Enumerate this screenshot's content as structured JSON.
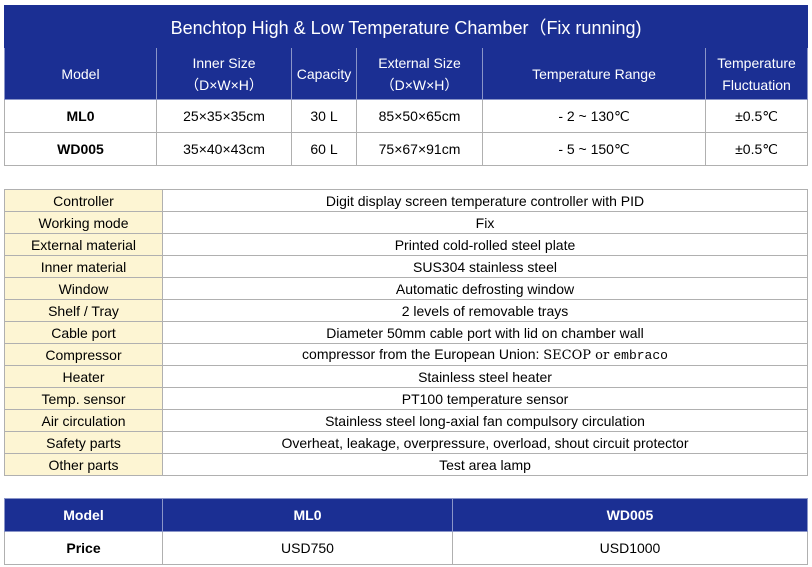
{
  "spec_table": {
    "title": "Benchtop High & Low Temperature Chamber（Fix running)",
    "headers": {
      "model": "Model",
      "inner_size": "Inner Size",
      "inner_size_sub": "（D×W×H）",
      "capacity": "Capacity",
      "external_size": "External Size",
      "external_size_sub": "（D×W×H）",
      "temp_range": "Temperature Range",
      "temp_fluct_1": "Temperature",
      "temp_fluct_2": "Fluctuation"
    },
    "rows": [
      {
        "model": "ML0",
        "inner_size": "25×35×35cm",
        "capacity": "30 L",
        "external_size": "85×50×65cm",
        "temp_range": "- 2 ~ 130℃",
        "fluctuation": "±0.5℃"
      },
      {
        "model": "WD005",
        "inner_size": "35×40×43cm",
        "capacity": "60 L",
        "external_size": "75×67×91cm",
        "temp_range": "- 5 ~ 150℃",
        "fluctuation": "±0.5℃"
      }
    ]
  },
  "features_table": {
    "rows": [
      {
        "label": "Controller",
        "value": "Digit display screen temperature controller with PID"
      },
      {
        "label": "Working mode",
        "value": "Fix"
      },
      {
        "label": "External material",
        "value": "Printed cold-rolled steel plate"
      },
      {
        "label": "Inner material",
        "value": "SUS304 stainless steel"
      },
      {
        "label": "Window",
        "value": "Automatic defrosting window"
      },
      {
        "label": "Shelf / Tray",
        "value": "2 levels of removable trays"
      },
      {
        "label": "Cable port",
        "value": "Diameter 50mm cable port with lid on chamber wall"
      },
      {
        "label": "Heater",
        "value": "Stainless steel heater"
      },
      {
        "label": "Temp. sensor",
        "value": "PT100 temperature sensor"
      },
      {
        "label": "Air circulation",
        "value": "Stainless steel long-axial fan compulsory circulation"
      },
      {
        "label": "Safety parts",
        "value": "Overheat, leakage, overpressure, overload, shout circuit protector"
      },
      {
        "label": "Other parts",
        "value": "Test area lamp"
      }
    ],
    "compressor": {
      "label": "Compressor",
      "prefix": "compressor from the European Union: ",
      "brand1": "SECOP",
      "joiner": " or ",
      "brand2": "embraco"
    }
  },
  "price_table": {
    "header_model": "Model",
    "header_ml0": "ML0",
    "header_wd005": "WD005",
    "price_label": "Price",
    "price_ml0": "USD750",
    "price_wd005": "USD1000"
  }
}
